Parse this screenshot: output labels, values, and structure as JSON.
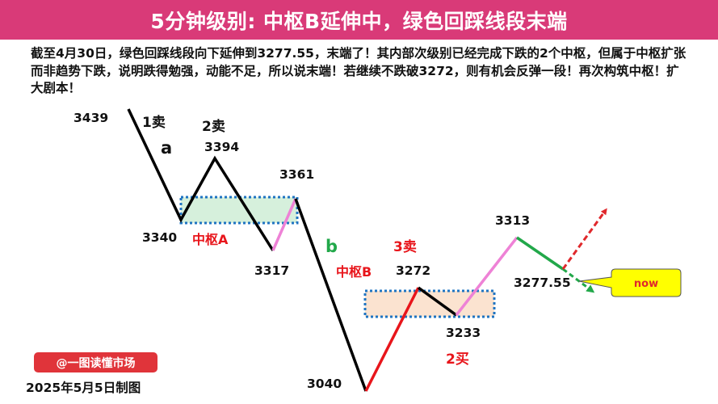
{
  "header": {
    "title": "5分钟级别: 中枢B延伸中，绿色回踩线段末端"
  },
  "description": "截至4月30日，绿色回踩线段向下延伸到3277.55，末端了！其内部次级别已经完成下跌的2个中枢，但属于中枢扩张而非趋势下跌，说明跌得勉强，动能不足，所以说末端！若继续不跌破3272，则有机会反弹一段！再次构筑中枢！扩大剧本！",
  "prices": {
    "p3439": "3439",
    "p3394": "3394",
    "p3361": "3361",
    "p3340": "3340",
    "p3317": "3317",
    "p3040": "3040",
    "p3272": "3272",
    "p3233": "3233",
    "p3313": "3313",
    "p327755": "3277.55"
  },
  "signals": {
    "sell1": "1卖",
    "sell2": "2卖",
    "sell3": "3卖",
    "buy2": "2买"
  },
  "segments": {
    "a": "a",
    "b": "b"
  },
  "pivots": {
    "a": "中枢A",
    "b": "中枢B"
  },
  "callout": {
    "now": "now"
  },
  "footer": {
    "source": "@一图读懂市场",
    "date": "2025年5月5日制图"
  },
  "colors": {
    "banner": "#d93a78",
    "down_segment": "#000000",
    "up_segment": "#e8151b",
    "pink_rebound": "#ee82d6",
    "green_pullback": "#22a84a",
    "dashed_arrow": "#e0282c",
    "pivot_border": "#1f74c2",
    "pivot_a_fill": "#d6f0dc",
    "pivot_b_fill": "#fbe3d0",
    "callout_fill": "#ffff00"
  }
}
